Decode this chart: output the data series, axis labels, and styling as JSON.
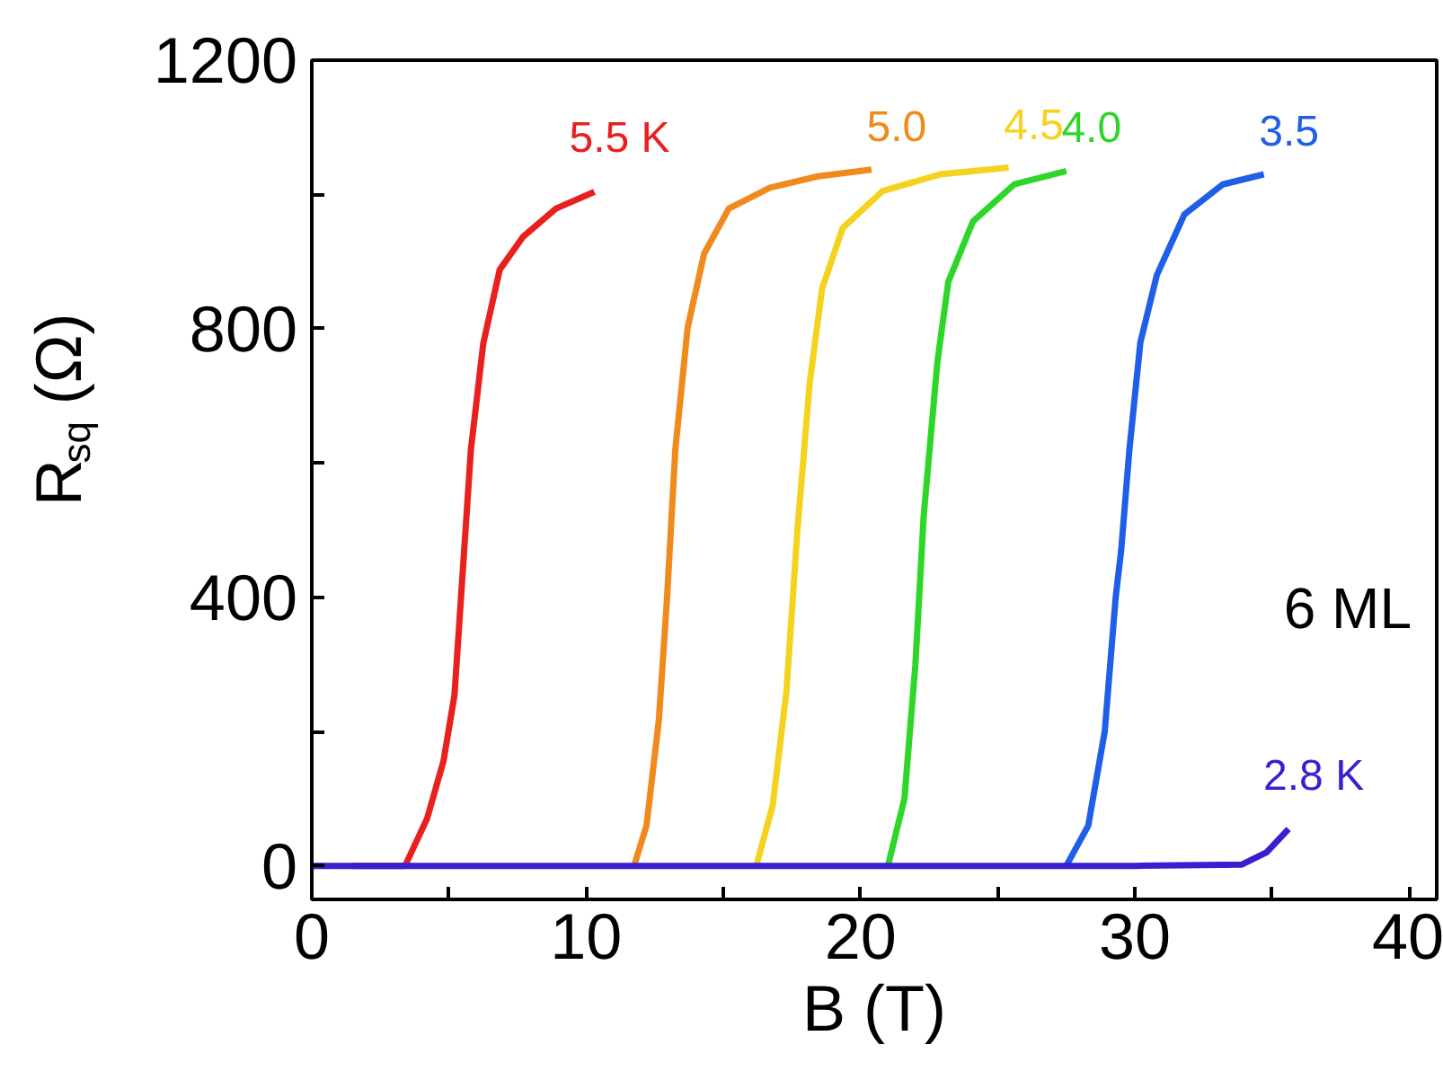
{
  "chart_data": {
    "type": "line",
    "xlabel": "B (T)",
    "ylabel": "R$_{sq}$ (Ω)",
    "xlim": [
      0,
      41
    ],
    "ylim": [
      -50,
      1200
    ],
    "xticks": [
      0,
      {
        "value": 5,
        "label": null
      },
      10,
      {
        "value": 15,
        "label": null
      },
      20,
      {
        "value": 25,
        "label": null
      },
      30,
      {
        "value": 35,
        "label": null
      },
      40
    ],
    "yticks": [
      0,
      {
        "value": 200,
        "label": null
      },
      400,
      {
        "value": 600,
        "label": null
      },
      800,
      {
        "value": 1000,
        "label": null
      },
      1200
    ],
    "grid": false,
    "marker": "none",
    "line_style": "solid",
    "annotations": [
      "6 ML"
    ],
    "series": [
      {
        "name": "5.5 K",
        "color": "#e8201e",
        "x": [
          1.5,
          3.4,
          4.2,
          4.8,
          5.2,
          5.5,
          5.8,
          6.25,
          6.85,
          7.7,
          8.9,
          10.3
        ],
        "values": [
          0,
          0,
          70,
          156,
          254,
          437,
          620,
          778,
          888,
          937,
          979,
          1004
        ]
      },
      {
        "name": "5.0",
        "color": "#f08a1c",
        "x": [
          11.75,
          12.2,
          12.65,
          12.95,
          13.25,
          13.7,
          14.3,
          15.2,
          16.7,
          18.45,
          20.4
        ],
        "values": [
          0,
          60,
          217,
          400,
          620,
          802,
          912,
          979,
          1010,
          1027,
          1037
        ]
      },
      {
        "name": "4.5",
        "color": "#f5d21e",
        "x": [
          16.2,
          16.8,
          17.3,
          17.7,
          18.15,
          18.6,
          19.35,
          20.8,
          22.9,
          25.4
        ],
        "values": [
          0,
          90,
          260,
          500,
          720,
          860,
          950,
          1005,
          1030,
          1040
        ]
      },
      {
        "name": "4.0",
        "color": "#2fd62a",
        "x": [
          21.0,
          21.6,
          22.0,
          22.3,
          22.8,
          23.2,
          24.1,
          25.6,
          27.5
        ],
        "values": [
          0,
          100,
          300,
          520,
          750,
          870,
          960,
          1015,
          1035
        ]
      },
      {
        "name": "3.5",
        "color": "#1f5fe8",
        "x": [
          27.5,
          28.3,
          28.9,
          29.3,
          29.5,
          29.8,
          30.2,
          30.8,
          31.8,
          33.2,
          34.7
        ],
        "values": [
          0,
          60,
          200,
          400,
          470,
          620,
          780,
          880,
          970,
          1015,
          1030
        ]
      },
      {
        "name": "2.8 K",
        "color": "#3a1fd0",
        "x": [
          0,
          10,
          20,
          30,
          33.9,
          34.8,
          35.6
        ],
        "values": [
          0,
          0,
          0,
          0,
          2,
          20,
          55
        ]
      }
    ]
  }
}
